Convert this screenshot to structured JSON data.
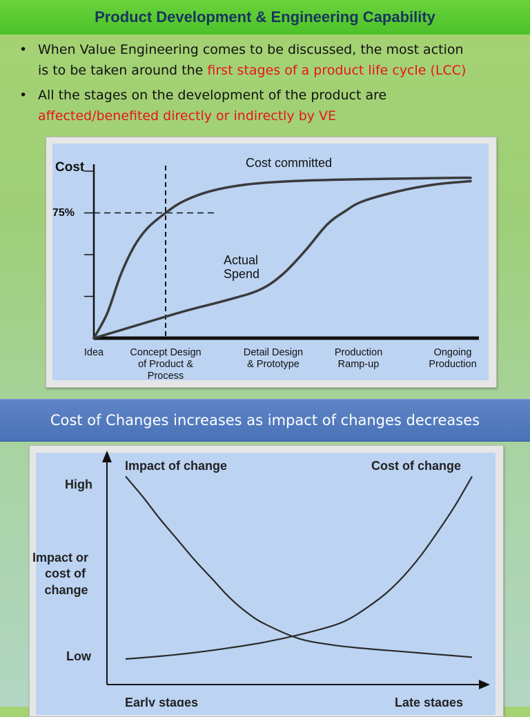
{
  "slide": {
    "title": "Product Development & Engineering Capability",
    "bullets": [
      {
        "line1": "When Value Engineering comes to be discussed, the most action",
        "line2_plain": "is to be taken around the ",
        "line2_red": "first stages of a product life cycle (LCC)"
      },
      {
        "line1": "All the stages on the development of the product are",
        "line2_red": "affected/benefited directly or indirectly by VE"
      }
    ],
    "banner": "Cost of Changes increases as impact of changes decreases"
  },
  "colors": {
    "title_text": "#17365d",
    "highlight_red": "#e8141c",
    "banner_bg": "#4f77bd",
    "plot_bg": "#bcd3f2",
    "curve": "#3a3a3a"
  },
  "chart_data": [
    {
      "type": "line",
      "title": "",
      "ylabel": "Cost",
      "ytick_label": "75%",
      "ytick_value": 75,
      "ylim": [
        0,
        100
      ],
      "xlim": [
        0,
        4.3
      ],
      "reference_x": 0.8,
      "categories": [
        "Idea",
        "Concept Design of Product & Process",
        "Detail Design & Prototype",
        "Production Ramp-up",
        "Ongoing Production"
      ],
      "category_lines": [
        [
          "Idea"
        ],
        [
          "Concept Design",
          "of Product &",
          "Process"
        ],
        [
          "Detail Design",
          "& Prototype"
        ],
        [
          "Production",
          "Ramp-up"
        ],
        [
          "Ongoing",
          "Production"
        ]
      ],
      "category_positions": [
        0,
        0.8,
        2.0,
        2.95,
        4.0
      ],
      "series": [
        {
          "name": "Cost committed",
          "x": [
            0,
            0.15,
            0.3,
            0.45,
            0.6,
            0.8,
            1.0,
            1.3,
            1.7,
            2.2,
            2.8,
            3.4,
            4.0,
            4.2
          ],
          "values": [
            0,
            15,
            38,
            55,
            66,
            75,
            82,
            88,
            92,
            94,
            95,
            95.5,
            96,
            96
          ]
        },
        {
          "name": "Actual Spend",
          "x": [
            0,
            0.5,
            1.0,
            1.5,
            1.85,
            2.1,
            2.35,
            2.6,
            2.8,
            3.0,
            3.4,
            3.8,
            4.2
          ],
          "values": [
            0,
            8,
            16,
            23,
            29,
            38,
            52,
            68,
            76,
            82,
            88,
            92,
            94
          ]
        }
      ]
    },
    {
      "type": "line",
      "title": "",
      "ylabel": "Impact or cost of change",
      "ytick_labels": [
        "High",
        "Low"
      ],
      "xtick_labels": [
        "Early stages",
        "Late stages"
      ],
      "xlim": [
        0,
        1
      ],
      "ylim": [
        0,
        1
      ],
      "series": [
        {
          "name": "Impact of change",
          "x": [
            0,
            0.05,
            0.1,
            0.15,
            0.2,
            0.25,
            0.3,
            0.35,
            0.4,
            0.5,
            0.6,
            0.7,
            0.8,
            0.9,
            1.0
          ],
          "values": [
            0.98,
            0.87,
            0.75,
            0.64,
            0.53,
            0.43,
            0.33,
            0.25,
            0.19,
            0.11,
            0.075,
            0.055,
            0.04,
            0.025,
            0.01
          ]
        },
        {
          "name": "Cost of change",
          "x": [
            0,
            0.1,
            0.2,
            0.3,
            0.4,
            0.5,
            0.6,
            0.65,
            0.7,
            0.75,
            0.8,
            0.85,
            0.9,
            0.95,
            1.0
          ],
          "values": [
            0.0,
            0.015,
            0.035,
            0.06,
            0.09,
            0.13,
            0.18,
            0.22,
            0.28,
            0.35,
            0.44,
            0.55,
            0.68,
            0.82,
            0.98
          ]
        }
      ]
    }
  ]
}
